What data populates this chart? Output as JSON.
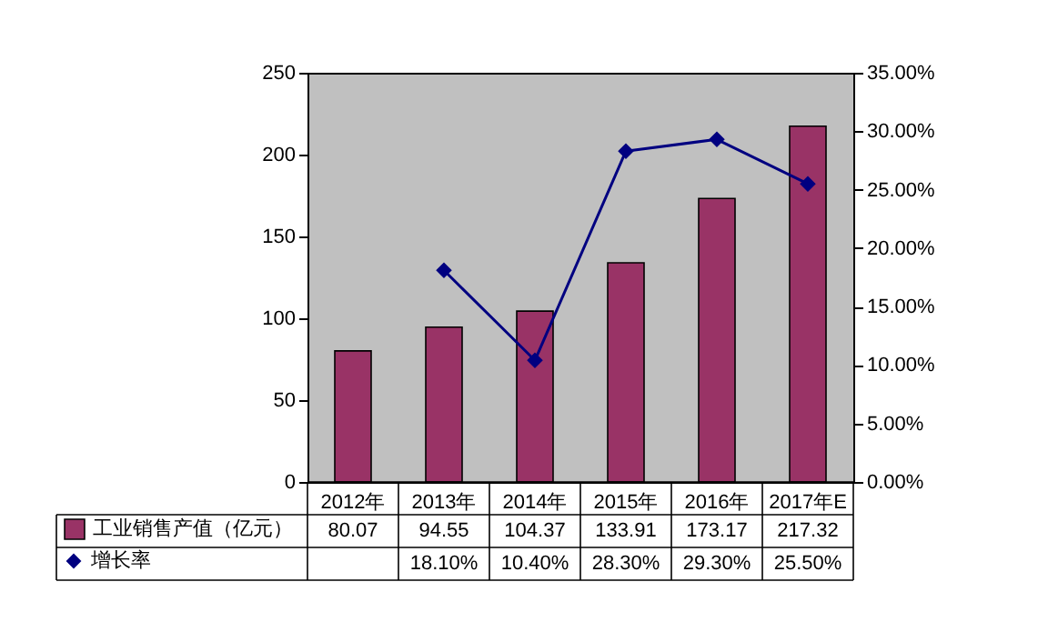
{
  "chart_data": {
    "type": "bar",
    "categories": [
      "2012年",
      "2013年",
      "2014年",
      "2015年",
      "2016年",
      "2017年E"
    ],
    "series": [
      {
        "name": "工业销售产值（亿元）",
        "color": "#993366",
        "values": [
          80.07,
          94.55,
          104.37,
          133.91,
          173.17,
          217.32
        ],
        "value_labels": [
          "80.07",
          "94.55",
          "104.37",
          "133.91",
          "173.17",
          "217.32"
        ]
      },
      {
        "name": "增长率",
        "type": "line",
        "axis": "y2",
        "color": "#000080",
        "values": [
          null,
          18.1,
          10.4,
          28.3,
          29.3,
          25.5
        ],
        "value_labels": [
          null,
          "18.10%",
          "10.40%",
          "28.30%",
          "29.30%",
          "25.50%"
        ]
      }
    ],
    "marker": "diamond",
    "legend": "bottom left",
    "ylim": [
      0,
      250
    ],
    "yticks": [
      0,
      50,
      100,
      150,
      200,
      250
    ],
    "y2lim": [
      0,
      35
    ],
    "y2ticks": [
      {
        "value": 0,
        "label": "0.00%"
      },
      {
        "value": 5,
        "label": "5.00%"
      },
      {
        "value": 10,
        "label": "10.00%"
      },
      {
        "value": 15,
        "label": "15.00%"
      },
      {
        "value": 20,
        "label": "20.00%"
      },
      {
        "value": 25,
        "label": "25.00%"
      },
      {
        "value": 30,
        "label": "30.00%"
      },
      {
        "value": 35,
        "label": "35.00%"
      }
    ]
  }
}
